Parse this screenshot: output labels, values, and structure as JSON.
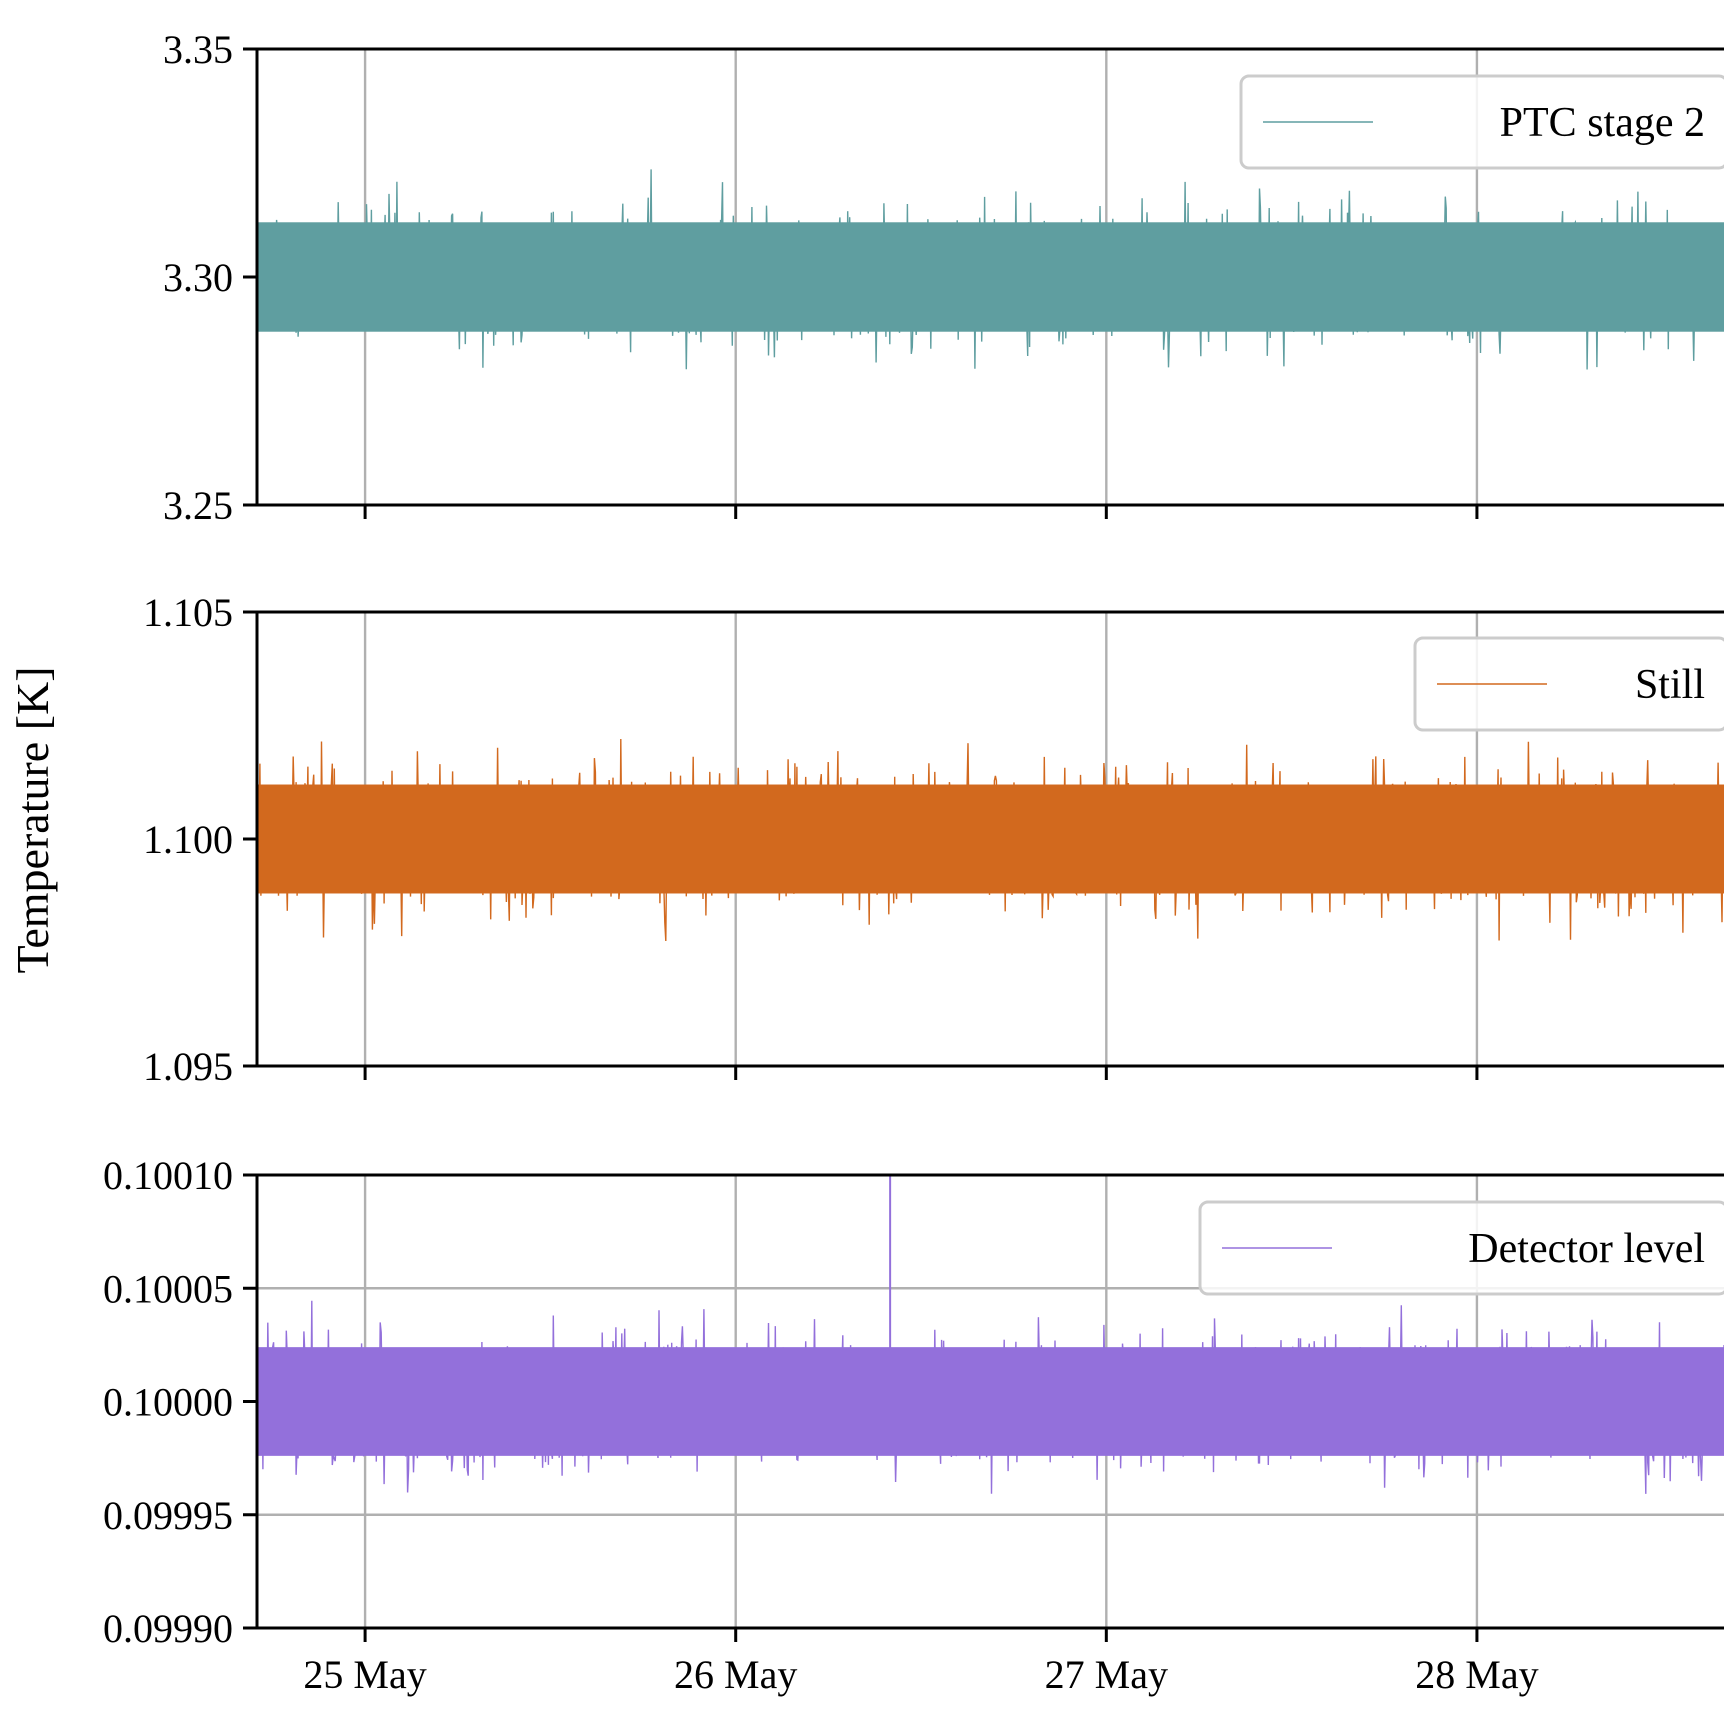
{
  "figure": {
    "ylabel": "Temperature [K]"
  },
  "chart_data": [
    {
      "type": "line",
      "series": [
        {
          "name": "PTC stage 2",
          "color": "#5f9ea0",
          "mean": 3.3,
          "noise_half_range": 0.02
        }
      ],
      "x_range": [
        "2024-05-24T17:00",
        "2024-05-28T16:00"
      ],
      "xticks": [
        "25 May",
        "26 May",
        "27 May",
        "28 May"
      ],
      "ylim": [
        3.25,
        3.35
      ],
      "yticks": [
        "3.25",
        "3.30",
        "3.35"
      ],
      "grid": "x",
      "legend_position": "upper right"
    },
    {
      "type": "line",
      "series": [
        {
          "name": "Still",
          "color": "#d2691e",
          "mean": 1.1,
          "noise_half_range": 0.002
        }
      ],
      "x_range": [
        "2024-05-24T17:00",
        "2024-05-28T16:00"
      ],
      "xticks": [
        "25 May",
        "26 May",
        "27 May",
        "28 May"
      ],
      "ylim": [
        1.095,
        1.105
      ],
      "yticks": [
        "1.095",
        "1.100",
        "1.105"
      ],
      "grid": "x",
      "legend_position": "upper right"
    },
    {
      "type": "line",
      "series": [
        {
          "name": "Detector level",
          "color": "#9370db",
          "mean": 0.1,
          "noise_half_range": 4e-05,
          "spike_at": "2024-05-26T10:00",
          "spike_value": 0.1001
        }
      ],
      "x_range": [
        "2024-05-24T17:00",
        "2024-05-28T16:00"
      ],
      "xticks": [
        "25 May",
        "26 May",
        "27 May",
        "28 May"
      ],
      "ylim": [
        0.0999,
        0.1001
      ],
      "yticks": [
        "0.09990",
        "0.09995",
        "0.10000",
        "0.10005",
        "0.10010"
      ],
      "grid": "both",
      "legend_position": "upper right"
    }
  ]
}
